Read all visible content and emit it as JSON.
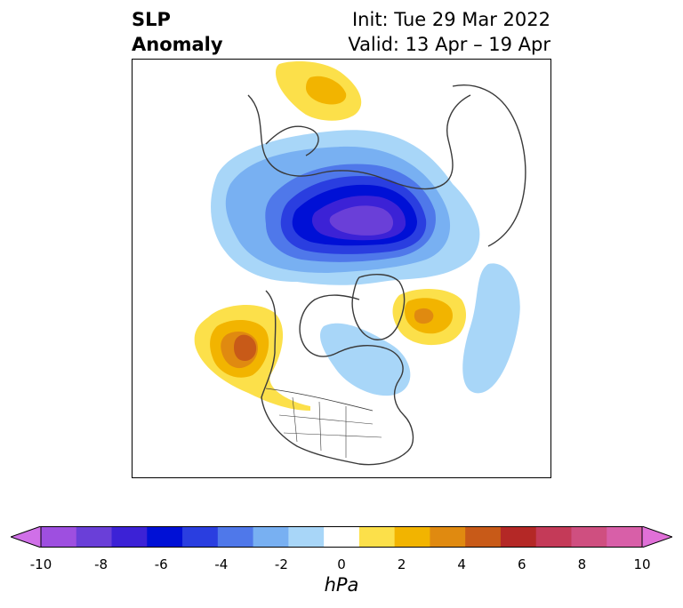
{
  "title": {
    "left_line1": "SLP",
    "left_line2": "Anomaly",
    "init": "Init: Tue 29 Mar 2022",
    "valid": "Valid: 13 Apr – 19 Apr"
  },
  "colorbar": {
    "unit": "hPa",
    "ticks": [
      "-10",
      "-8",
      "-6",
      "-4",
      "-2",
      "0",
      "2",
      "4",
      "6",
      "8",
      "10"
    ],
    "colors": [
      "#9e4fe0",
      "#6a3fd8",
      "#3c22d6",
      "#0010d6",
      "#2a3ee0",
      "#4f78ea",
      "#78b0f2",
      "#a8d6f8",
      "#ffffff",
      "#fce04a",
      "#f2b400",
      "#e08a10",
      "#c85a18",
      "#b42826",
      "#c43a58",
      "#cf4f80",
      "#d85fa8"
    ],
    "under_color": "#d070e8",
    "over_color": "#e070d8"
  },
  "map": {
    "description_regions": [
      "North America",
      "Arctic",
      "Greenland",
      "Europe"
    ]
  }
}
